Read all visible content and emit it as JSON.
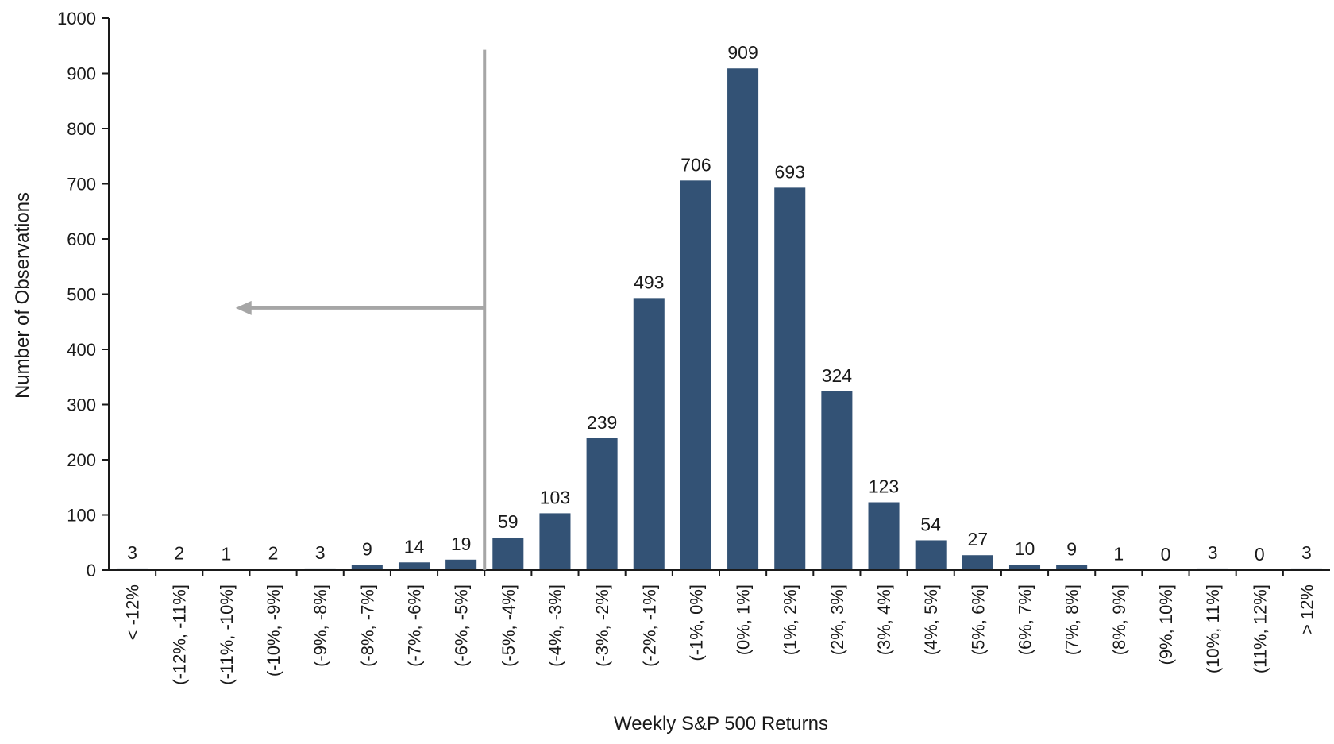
{
  "chart_data": {
    "type": "bar",
    "xlabel": "Weekly S&P 500 Returns",
    "ylabel": "Number of Observations",
    "ylim": [
      0,
      1000
    ],
    "yticks": [
      0,
      100,
      200,
      300,
      400,
      500,
      600,
      700,
      800,
      900,
      1000
    ],
    "categories": [
      "< -12%",
      "(-12%, -11%]",
      "(-11%, -10%]",
      "(-10%, -9%]",
      "(-9%, -8%]",
      "(-8%, -7%]",
      "(-7%, -6%]",
      "(-6%, -5%]",
      "(-5%, -4%]",
      "(-4%, -3%]",
      "(-3%, -2%]",
      "(-2%, -1%]",
      "(-1%, 0%]",
      "(0%, 1%]",
      "(1%, 2%]",
      "(2%, 3%]",
      "(3%, 4%]",
      "(4%, 5%]",
      "(5%, 6%]",
      "(6%, 7%]",
      "(7%, 8%]",
      "(8%, 9%]",
      "(9%, 10%]",
      "(10%, 11%]",
      "(11%, 12%]",
      "> 12%"
    ],
    "values": [
      3,
      2,
      1,
      2,
      3,
      9,
      14,
      19,
      59,
      103,
      239,
      493,
      706,
      909,
      693,
      324,
      123,
      54,
      27,
      10,
      9,
      1,
      0,
      3,
      0,
      3
    ],
    "bar_color": "#335275",
    "annotation": {
      "type": "divider-with-left-arrow",
      "between_categories": [
        "(-6%, -5%]",
        "(-5%, -4%]"
      ],
      "color": "#a6a6a6"
    },
    "grid": false,
    "legend": "none"
  }
}
